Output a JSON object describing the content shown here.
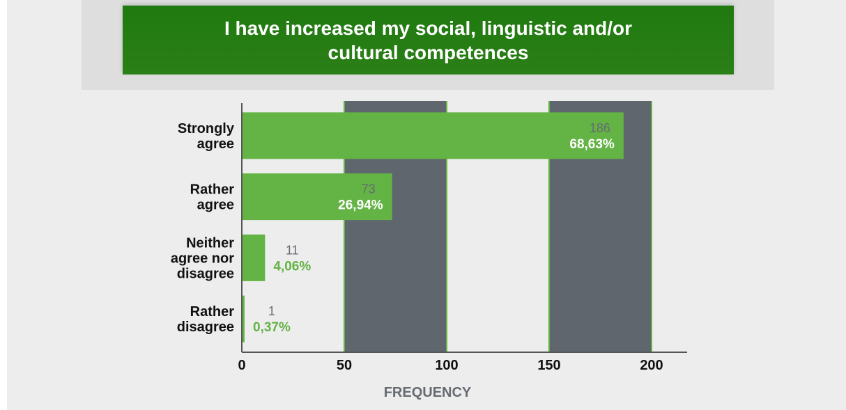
{
  "chart_data": {
    "type": "bar",
    "orientation": "horizontal",
    "title": "I have increased my social, linguistic and/or\ncultural competences",
    "xlabel": "FREQUENCY",
    "ylabel": "",
    "categories": [
      "Strongly\nagree",
      "Rather\nagree",
      "Neither\nagree nor\ndisagree",
      "Rather\ndisagree"
    ],
    "values": [
      186,
      73,
      11,
      1
    ],
    "percent_labels": [
      "68,63%",
      "26,94%",
      "4,06%",
      "0,37%"
    ],
    "xlim": [
      0,
      200
    ],
    "xticks": [
      0,
      50,
      100,
      150,
      200
    ],
    "alternating_bands": true,
    "colors": {
      "bar": "#63b345",
      "band": "#60666e",
      "band_border": "#63b345",
      "count_text": "#666b72",
      "pct_inside": "#ffffff",
      "pct_outside": "#63b345",
      "title_bg": "#237d12"
    }
  }
}
